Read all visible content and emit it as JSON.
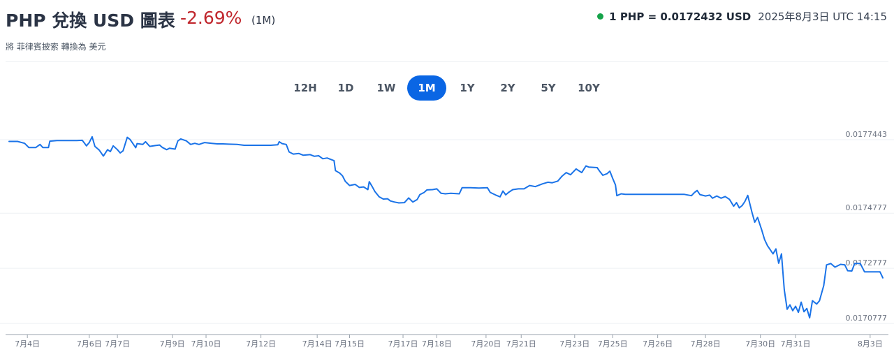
{
  "header": {
    "title": "PHP 兌換 USD 圖表",
    "change": "-2.69%",
    "period": "(1M)",
    "subtitle": "將 菲律賓披索 轉換為 美元",
    "rate": "1 PHP = 0.0172432 USD",
    "timestamp": "2025年8月3日 UTC 14:15"
  },
  "range_buttons": [
    {
      "label": "12H"
    },
    {
      "label": "1D"
    },
    {
      "label": "1W"
    },
    {
      "label": "1M",
      "active": true
    },
    {
      "label": "1Y"
    },
    {
      "label": "2Y"
    },
    {
      "label": "5Y"
    },
    {
      "label": "10Y"
    }
  ],
  "colors": {
    "line": "#1a73e8",
    "accent": "#0a66e4",
    "negative": "#c0272d",
    "status": "#16a34a"
  },
  "chart_data": {
    "type": "line",
    "title": "",
    "xlabel": "",
    "ylabel": "",
    "y_ticks": [
      "0.0177443",
      "0.0174777",
      "0.0172777",
      "0.0170777"
    ],
    "y_tick_values": [
      0.0177443,
      0.0174777,
      0.0172777,
      0.0170777
    ],
    "ylim": [
      0.017045,
      0.0178
    ],
    "x_ticks": [
      "7月4日",
      "7月6日",
      "7月7日",
      "7月9日",
      "7月10日",
      "7月12日",
      "7月14日",
      "7月15日",
      "7月17日",
      "7月18日",
      "7月20日",
      "7月21日",
      "7月23日",
      "7月25日",
      "7月26日",
      "7月28日",
      "7月30日",
      "7月31日",
      "8月3日"
    ],
    "x_tick_days": [
      0.65,
      2.85,
      3.85,
      5.8,
      7.0,
      8.95,
      10.95,
      12.1,
      14.0,
      15.2,
      16.95,
      18.2,
      20.1,
      21.45,
      23.05,
      24.75,
      26.7,
      27.95,
      30.6
    ],
    "x_range_days": [
      0,
      31.2
    ],
    "grid": true,
    "legend": "none",
    "series": [
      {
        "values": [
          [
            0.0,
            0.017738
          ],
          [
            0.3,
            0.017738
          ],
          [
            0.55,
            0.017731
          ],
          [
            0.7,
            0.017716
          ],
          [
            0.95,
            0.017716
          ],
          [
            1.1,
            0.017727
          ],
          [
            1.2,
            0.017716
          ],
          [
            1.4,
            0.017716
          ],
          [
            1.45,
            0.017739
          ],
          [
            1.7,
            0.017741
          ],
          [
            2.4,
            0.017741
          ],
          [
            2.6,
            0.017742
          ],
          [
            2.75,
            0.017722
          ],
          [
            2.85,
            0.017734
          ],
          [
            2.95,
            0.017755
          ],
          [
            3.05,
            0.01772
          ],
          [
            3.2,
            0.017707
          ],
          [
            3.35,
            0.017685
          ],
          [
            3.5,
            0.017708
          ],
          [
            3.6,
            0.017701
          ],
          [
            3.7,
            0.017722
          ],
          [
            3.85,
            0.017708
          ],
          [
            3.95,
            0.017696
          ],
          [
            4.05,
            0.017704
          ],
          [
            4.2,
            0.017753
          ],
          [
            4.3,
            0.017745
          ],
          [
            4.4,
            0.01773
          ],
          [
            4.5,
            0.017715
          ],
          [
            4.55,
            0.01773
          ],
          [
            4.75,
            0.017727
          ],
          [
            4.85,
            0.017737
          ],
          [
            5.0,
            0.01772
          ],
          [
            5.2,
            0.017723
          ],
          [
            5.35,
            0.017725
          ],
          [
            5.45,
            0.017716
          ],
          [
            5.6,
            0.017708
          ],
          [
            5.7,
            0.017713
          ],
          [
            5.9,
            0.01771
          ],
          [
            6.0,
            0.01774
          ],
          [
            6.1,
            0.017747
          ],
          [
            6.3,
            0.01774
          ],
          [
            6.45,
            0.017727
          ],
          [
            6.6,
            0.017731
          ],
          [
            6.75,
            0.017727
          ],
          [
            6.95,
            0.017734
          ],
          [
            7.2,
            0.017731
          ],
          [
            7.4,
            0.017729
          ],
          [
            7.6,
            0.017729
          ],
          [
            7.8,
            0.017728
          ],
          [
            8.1,
            0.017727
          ],
          [
            8.35,
            0.017724
          ],
          [
            8.8,
            0.017724
          ],
          [
            9.3,
            0.017724
          ],
          [
            9.55,
            0.017726
          ],
          [
            9.6,
            0.017737
          ],
          [
            9.7,
            0.01773
          ],
          [
            9.85,
            0.017727
          ],
          [
            9.95,
            0.0177
          ],
          [
            10.1,
            0.017692
          ],
          [
            10.3,
            0.017694
          ],
          [
            10.45,
            0.017688
          ],
          [
            10.7,
            0.01769
          ],
          [
            10.85,
            0.017684
          ],
          [
            11.0,
            0.017686
          ],
          [
            11.15,
            0.017675
          ],
          [
            11.3,
            0.017678
          ],
          [
            11.55,
            0.017668
          ],
          [
            11.6,
            0.017632
          ],
          [
            11.75,
            0.017623
          ],
          [
            11.85,
            0.017613
          ],
          [
            11.95,
            0.017593
          ],
          [
            12.1,
            0.017578
          ],
          [
            12.3,
            0.017582
          ],
          [
            12.45,
            0.017571
          ],
          [
            12.6,
            0.017573
          ],
          [
            12.75,
            0.017563
          ],
          [
            12.8,
            0.017592
          ],
          [
            12.9,
            0.017575
          ],
          [
            13.0,
            0.017556
          ],
          [
            13.15,
            0.017537
          ],
          [
            13.3,
            0.017529
          ],
          [
            13.45,
            0.01753
          ],
          [
            13.55,
            0.017522
          ],
          [
            13.7,
            0.017518
          ],
          [
            13.85,
            0.017515
          ],
          [
            14.05,
            0.017516
          ],
          [
            14.2,
            0.017533
          ],
          [
            14.35,
            0.017518
          ],
          [
            14.5,
            0.017527
          ],
          [
            14.6,
            0.017545
          ],
          [
            14.75,
            0.017553
          ],
          [
            14.85,
            0.017562
          ],
          [
            15.05,
            0.017563
          ],
          [
            15.2,
            0.017566
          ],
          [
            15.35,
            0.01755
          ],
          [
            15.5,
            0.017548
          ],
          [
            15.7,
            0.01755
          ],
          [
            16.0,
            0.017548
          ],
          [
            16.1,
            0.01757
          ],
          [
            16.4,
            0.01757
          ],
          [
            16.7,
            0.017569
          ],
          [
            17.0,
            0.01757
          ],
          [
            17.1,
            0.017553
          ],
          [
            17.3,
            0.017543
          ],
          [
            17.45,
            0.017537
          ],
          [
            17.55,
            0.017558
          ],
          [
            17.65,
            0.017544
          ],
          [
            17.75,
            0.017553
          ],
          [
            17.9,
            0.017563
          ],
          [
            18.1,
            0.017566
          ],
          [
            18.3,
            0.017566
          ],
          [
            18.5,
            0.017578
          ],
          [
            18.7,
            0.017574
          ],
          [
            18.95,
            0.017584
          ],
          [
            19.15,
            0.01759
          ],
          [
            19.3,
            0.017588
          ],
          [
            19.5,
            0.017594
          ],
          [
            19.65,
            0.017612
          ],
          [
            19.8,
            0.017625
          ],
          [
            19.95,
            0.017617
          ],
          [
            20.15,
            0.017638
          ],
          [
            20.35,
            0.017625
          ],
          [
            20.5,
            0.017649
          ],
          [
            20.6,
            0.017645
          ],
          [
            20.75,
            0.017644
          ],
          [
            20.9,
            0.017643
          ],
          [
            21.0,
            0.017628
          ],
          [
            21.1,
            0.017615
          ],
          [
            21.25,
            0.017621
          ],
          [
            21.35,
            0.01763
          ],
          [
            21.45,
            0.017604
          ],
          [
            21.55,
            0.01758
          ],
          [
            21.6,
            0.017541
          ],
          [
            21.75,
            0.017548
          ],
          [
            21.9,
            0.017546
          ],
          [
            22.2,
            0.017546
          ],
          [
            22.5,
            0.017546
          ],
          [
            23.0,
            0.017546
          ],
          [
            23.5,
            0.017546
          ],
          [
            24.0,
            0.017546
          ],
          [
            24.25,
            0.017541
          ],
          [
            24.35,
            0.017552
          ],
          [
            24.45,
            0.01756
          ],
          [
            24.55,
            0.017545
          ],
          [
            24.75,
            0.01754
          ],
          [
            24.9,
            0.017543
          ],
          [
            25.0,
            0.017532
          ],
          [
            25.15,
            0.01754
          ],
          [
            25.3,
            0.017532
          ],
          [
            25.45,
            0.017538
          ],
          [
            25.6,
            0.017528
          ],
          [
            25.75,
            0.017503
          ],
          [
            25.85,
            0.017516
          ],
          [
            25.95,
            0.017497
          ],
          [
            26.05,
            0.017505
          ],
          [
            26.15,
            0.01752
          ],
          [
            26.25,
            0.017542
          ],
          [
            26.3,
            0.017522
          ],
          [
            26.4,
            0.017481
          ],
          [
            26.5,
            0.017445
          ],
          [
            26.6,
            0.017462
          ],
          [
            26.75,
            0.017416
          ],
          [
            26.85,
            0.017382
          ],
          [
            26.95,
            0.01736
          ],
          [
            27.05,
            0.017345
          ],
          [
            27.15,
            0.01733
          ],
          [
            27.25,
            0.017348
          ],
          [
            27.35,
            0.017296
          ],
          [
            27.45,
            0.01733
          ],
          [
            27.55,
            0.0172
          ],
          [
            27.65,
            0.017129
          ],
          [
            27.75,
            0.017145
          ],
          [
            27.85,
            0.017124
          ],
          [
            27.95,
            0.01714
          ],
          [
            28.05,
            0.017118
          ],
          [
            28.15,
            0.017155
          ],
          [
            28.25,
            0.01712
          ],
          [
            28.35,
            0.017132
          ],
          [
            28.45,
            0.017098
          ],
          [
            28.55,
            0.01716
          ],
          [
            28.7,
            0.017148
          ],
          [
            28.8,
            0.01716
          ],
          [
            28.95,
            0.017215
          ],
          [
            29.05,
            0.01729
          ],
          [
            29.2,
            0.017295
          ],
          [
            29.35,
            0.017282
          ],
          [
            29.55,
            0.017292
          ],
          [
            29.7,
            0.01729
          ],
          [
            29.8,
            0.017269
          ],
          [
            29.95,
            0.017268
          ],
          [
            30.05,
            0.017295
          ],
          [
            30.25,
            0.017295
          ],
          [
            30.4,
            0.017265
          ],
          [
            30.55,
            0.017265
          ],
          [
            30.95,
            0.017265
          ],
          [
            31.05,
            0.017243
          ]
        ]
      }
    ]
  }
}
